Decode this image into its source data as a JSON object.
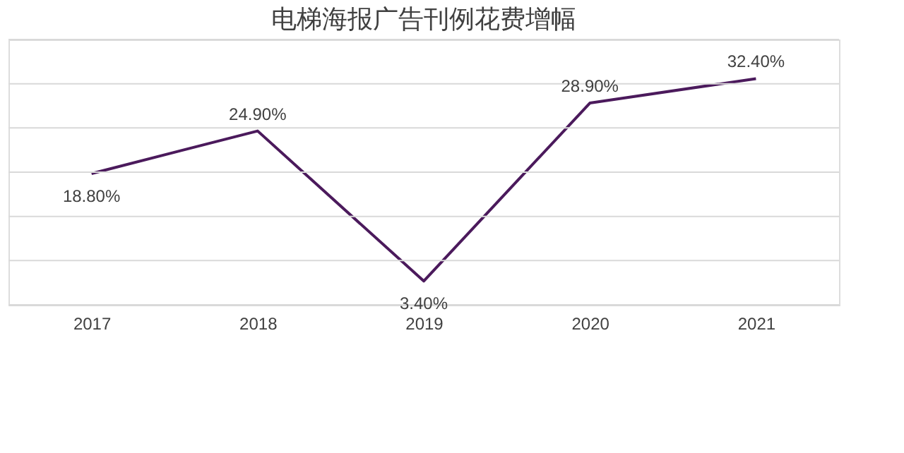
{
  "chart_data": {
    "type": "line",
    "title": "电梯海报广告刊例花费增幅",
    "categories": [
      "2017",
      "2018",
      "2019",
      "2020",
      "2021"
    ],
    "series": [
      {
        "color": "#4b1a5c",
        "values": [
          18.8,
          24.9,
          3.4,
          28.9,
          32.4
        ],
        "value_labels": [
          "18.80%",
          "24.90%",
          "3.40%",
          "28.90%",
          "32.40%"
        ]
      }
    ],
    "ylim": [
      0,
      38
    ],
    "yticks": [
      {
        "value": 0,
        "label": null
      },
      {
        "value": 6.33,
        "label": null
      },
      {
        "value": 12.67,
        "label": null
      },
      {
        "value": 19,
        "label": null
      },
      {
        "value": 25.33,
        "label": null
      },
      {
        "value": 31.67,
        "label": null
      },
      {
        "value": 38,
        "label": null
      }
    ],
    "grid": "y",
    "tick_labels": "x",
    "marker": "none",
    "line_style": "solid"
  }
}
